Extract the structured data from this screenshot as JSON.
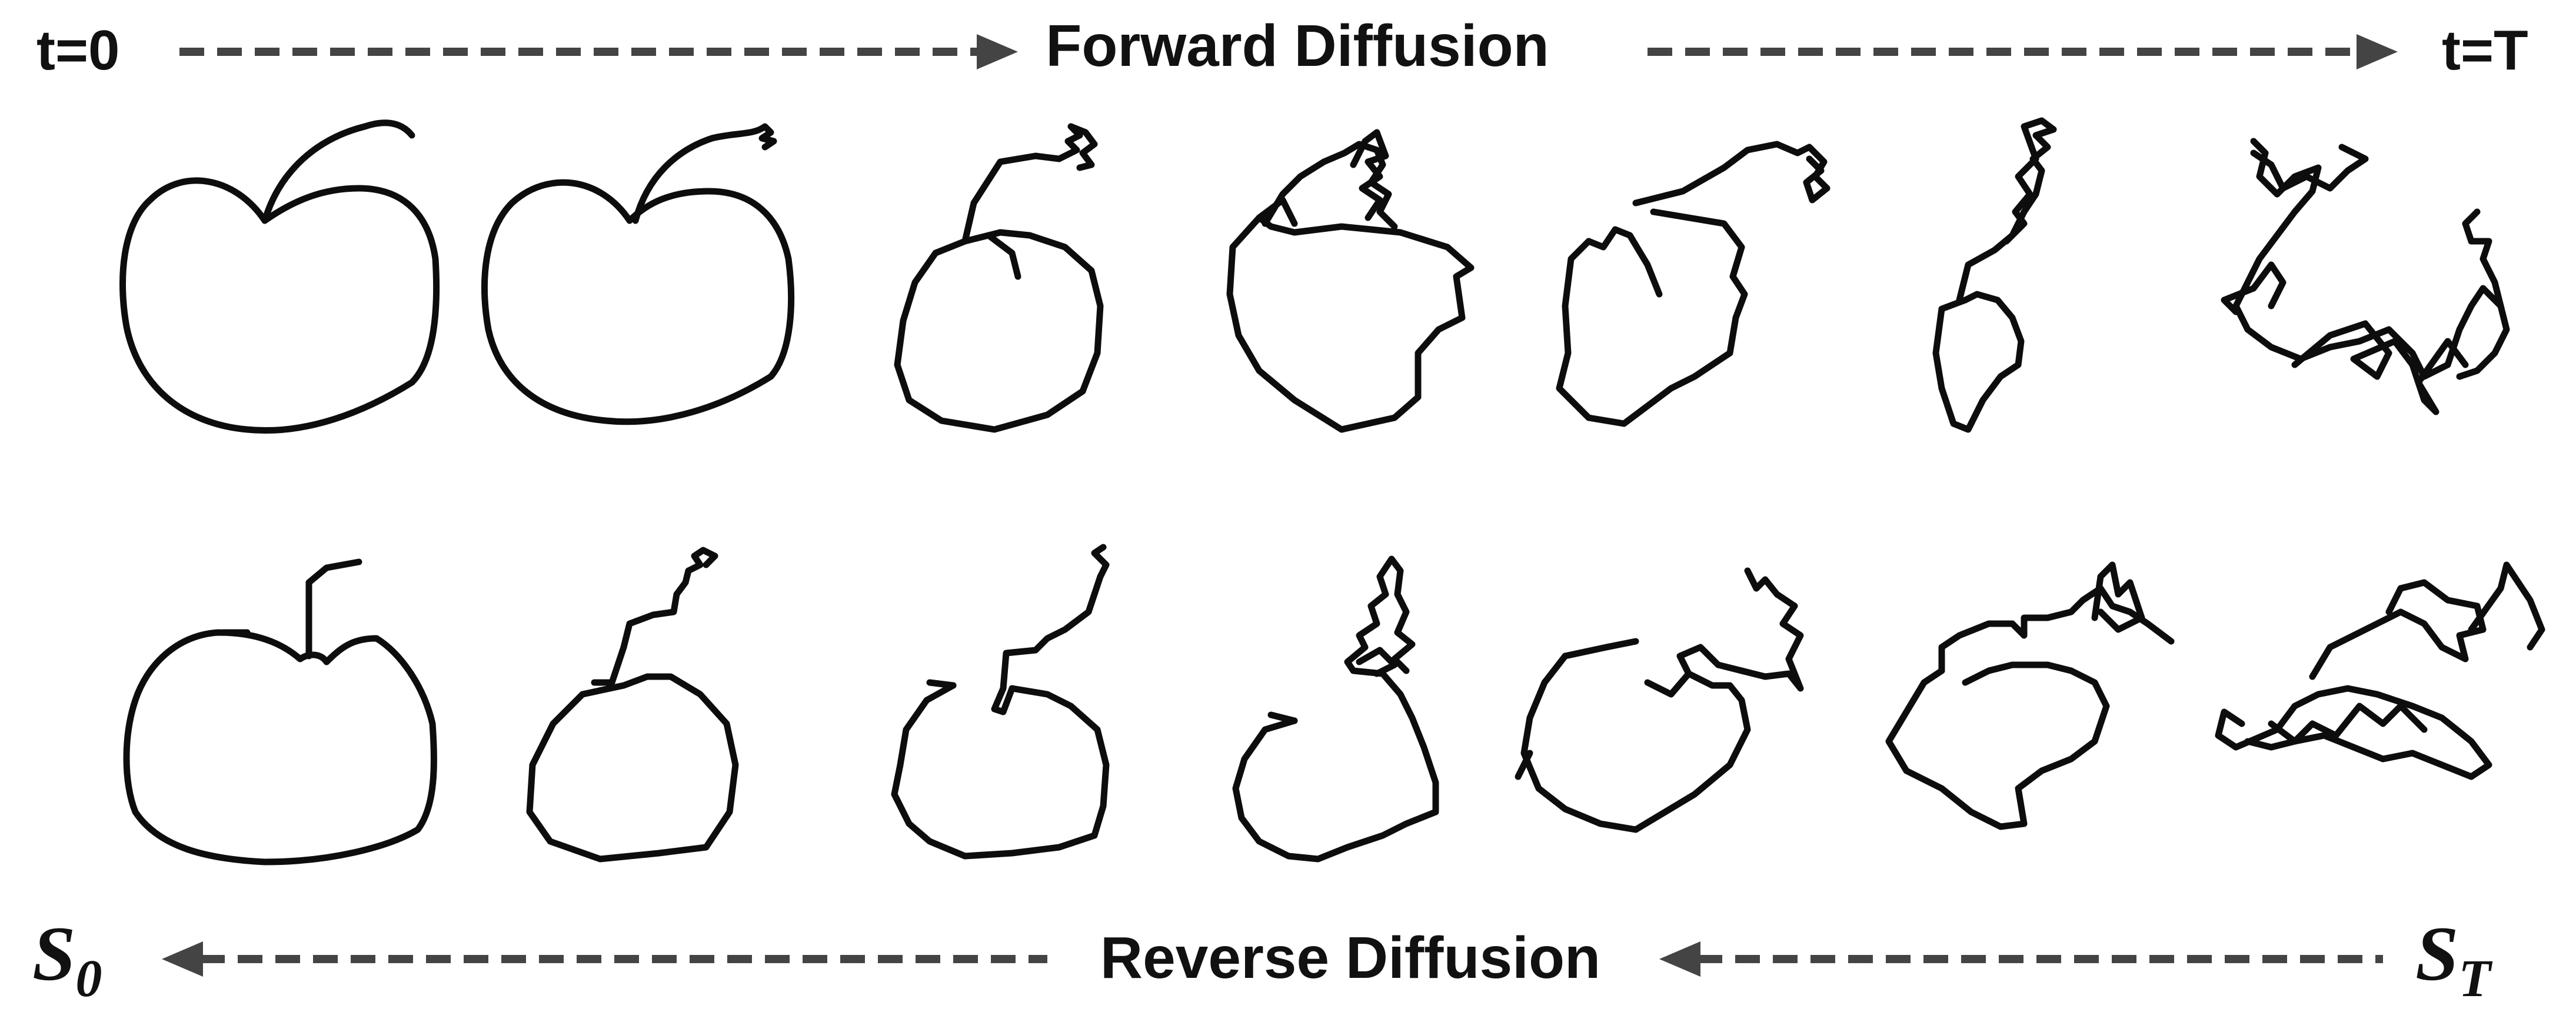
{
  "header": {
    "start_label": "t=0",
    "end_label": "t=T",
    "forward_label": "Forward Diffusion"
  },
  "footer": {
    "reverse_label": "Reverse Diffusion",
    "start_symbol": "S",
    "start_subscript": "0",
    "end_symbol": "S",
    "end_subscript": "T"
  },
  "colors": {
    "arrow": "#444444",
    "sketch": "#0d0d0d",
    "text": "#111111"
  },
  "sketch_rows": [
    {
      "name": "forward-row",
      "panels": 7,
      "subject": "apple sketch, increasing noise left to right"
    },
    {
      "name": "reverse-row",
      "panels": 7,
      "subject": "apple sketch, increasing noise left to right"
    }
  ]
}
